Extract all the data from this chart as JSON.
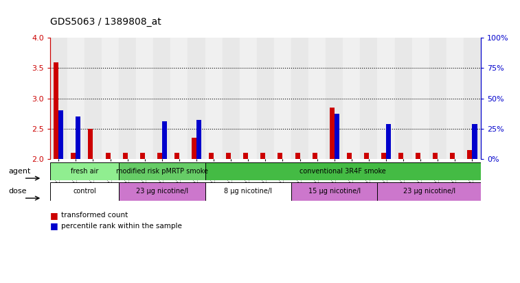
{
  "title": "GDS5063 / 1389808_at",
  "samples": [
    "GSM1217206",
    "GSM1217207",
    "GSM1217208",
    "GSM1217209",
    "GSM1217210",
    "GSM1217211",
    "GSM1217212",
    "GSM1217213",
    "GSM1217214",
    "GSM1217215",
    "GSM1217221",
    "GSM1217222",
    "GSM1217223",
    "GSM1217224",
    "GSM1217225",
    "GSM1217216",
    "GSM1217217",
    "GSM1217218",
    "GSM1217219",
    "GSM1217220",
    "GSM1217226",
    "GSM1217227",
    "GSM1217228",
    "GSM1217229",
    "GSM1217230"
  ],
  "red_values": [
    3.6,
    2.1,
    2.5,
    2.1,
    2.1,
    2.1,
    2.1,
    2.1,
    2.35,
    2.1,
    2.1,
    2.1,
    2.1,
    2.1,
    2.1,
    2.1,
    2.85,
    2.1,
    2.1,
    2.1,
    2.1,
    2.1,
    2.1,
    2.1,
    2.15
  ],
  "blue_values": [
    2.8,
    2.7,
    2.0,
    2.0,
    2.0,
    2.0,
    2.62,
    2.0,
    2.65,
    2.0,
    2.0,
    2.0,
    2.0,
    2.0,
    2.0,
    2.0,
    2.75,
    2.0,
    2.0,
    2.58,
    2.0,
    2.0,
    2.0,
    2.0,
    2.58
  ],
  "y_min": 2.0,
  "y_max": 4.0,
  "y_ticks": [
    2.0,
    2.5,
    3.0,
    3.5,
    4.0
  ],
  "y2_ticks": [
    0,
    25,
    50,
    75,
    100
  ],
  "agent_groups": [
    {
      "label": "fresh air",
      "start": 0,
      "end": 4,
      "color": "#90EE90"
    },
    {
      "label": "modified risk pMRTP smoke",
      "start": 4,
      "end": 9,
      "color": "#66CC66"
    },
    {
      "label": "conventional 3R4F smoke",
      "start": 9,
      "end": 25,
      "color": "#44BB44"
    }
  ],
  "dose_groups": [
    {
      "label": "control",
      "start": 0,
      "end": 4,
      "color": "#FFFFFF"
    },
    {
      "label": "23 μg nicotine/l",
      "start": 4,
      "end": 9,
      "color": "#CC77CC"
    },
    {
      "label": "8 μg nicotine/l",
      "start": 9,
      "end": 14,
      "color": "#FFFFFF"
    },
    {
      "label": "15 μg nicotine/l",
      "start": 14,
      "end": 19,
      "color": "#CC77CC"
    },
    {
      "label": "23 μg nicotine/l",
      "start": 19,
      "end": 25,
      "color": "#CC77CC"
    }
  ],
  "legend_red": "transformed count",
  "legend_blue": "percentile rank within the sample",
  "red_color": "#CC0000",
  "blue_color": "#0000CC"
}
